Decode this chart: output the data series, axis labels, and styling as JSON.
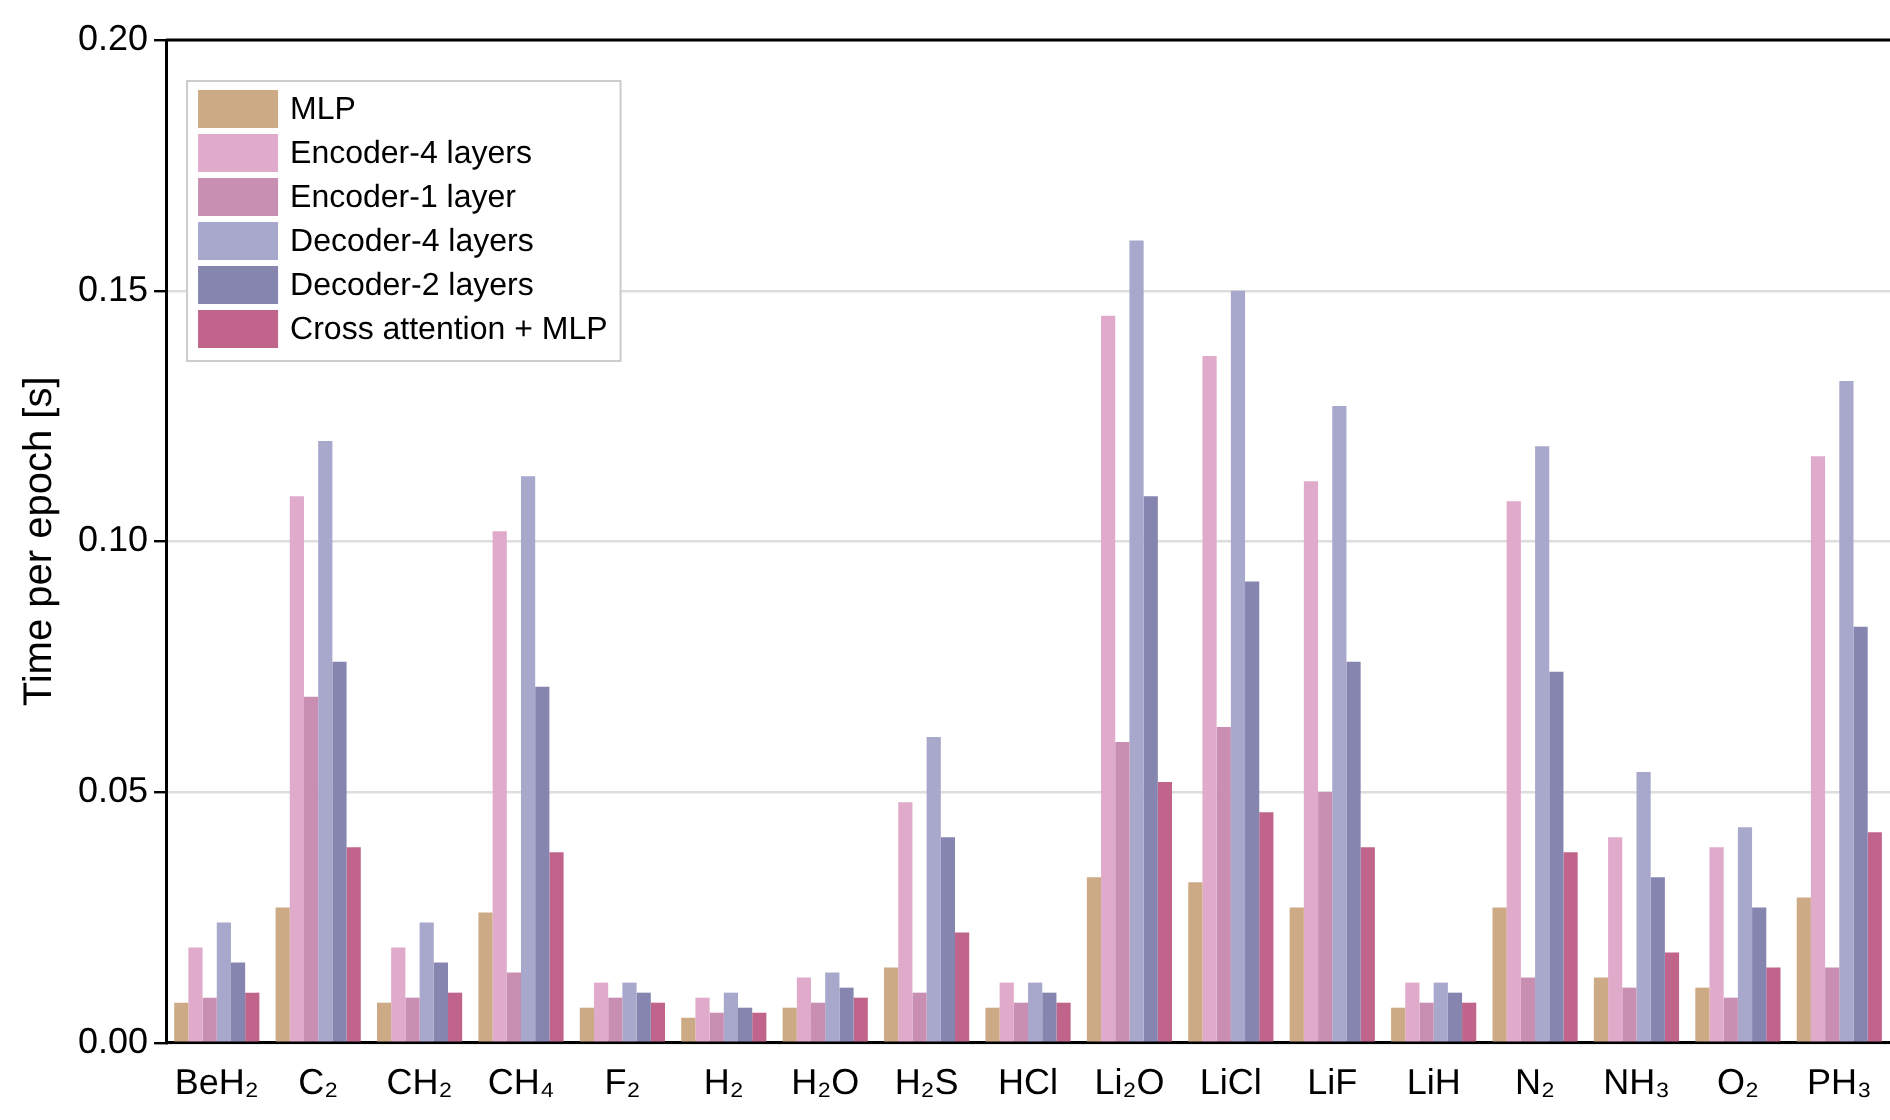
{
  "chart_data": {
    "type": "bar",
    "ylabel": "Time per epoch [s]",
    "categories": [
      "BeH₂",
      "C₂",
      "CH₂",
      "CH₄",
      "F₂",
      "H₂",
      "H₂O",
      "H₂S",
      "HCl",
      "Li₂O",
      "LiCl",
      "LiF",
      "LiH",
      "N₂",
      "NH₃",
      "O₂",
      "PH₃"
    ],
    "series": [
      {
        "name": "MLP",
        "color": "#cdaa86",
        "values": [
          0.008,
          0.027,
          0.008,
          0.026,
          0.007,
          0.005,
          0.007,
          0.015,
          0.007,
          0.033,
          0.032,
          0.027,
          0.007,
          0.027,
          0.013,
          0.011,
          0.029
        ]
      },
      {
        "name": "Encoder-4 layers",
        "color": "#e0aacb",
        "values": [
          0.019,
          0.109,
          0.019,
          0.102,
          0.012,
          0.009,
          0.013,
          0.048,
          0.012,
          0.145,
          0.137,
          0.112,
          0.012,
          0.108,
          0.041,
          0.039,
          0.117
        ]
      },
      {
        "name": "Encoder-1 layer",
        "color": "#c98fb3",
        "values": [
          0.009,
          0.069,
          0.009,
          0.014,
          0.009,
          0.006,
          0.008,
          0.01,
          0.008,
          0.06,
          0.063,
          0.05,
          0.008,
          0.013,
          0.011,
          0.009,
          0.015
        ]
      },
      {
        "name": "Decoder-4 layers",
        "color": "#a8a8cc",
        "values": [
          0.024,
          0.12,
          0.024,
          0.113,
          0.012,
          0.01,
          0.014,
          0.061,
          0.012,
          0.16,
          0.15,
          0.127,
          0.012,
          0.119,
          0.054,
          0.043,
          0.132
        ]
      },
      {
        "name": "Decoder-2 layers",
        "color": "#8585b0",
        "values": [
          0.016,
          0.076,
          0.016,
          0.071,
          0.01,
          0.007,
          0.011,
          0.041,
          0.01,
          0.109,
          0.092,
          0.076,
          0.01,
          0.074,
          0.033,
          0.027,
          0.083
        ]
      },
      {
        "name": "Cross attention + MLP",
        "color": "#c0648c",
        "values": [
          0.01,
          0.039,
          0.01,
          0.038,
          0.008,
          0.006,
          0.009,
          0.022,
          0.008,
          0.052,
          0.046,
          0.039,
          0.008,
          0.038,
          0.018,
          0.015,
          0.042
        ]
      }
    ],
    "ylim": [
      0,
      0.2
    ],
    "yticks": [
      {
        "value": 0,
        "label": "0.00"
      },
      {
        "value": 0.05,
        "label": "0.05"
      },
      {
        "value": 0.1,
        "label": "0.10"
      },
      {
        "value": 0.15,
        "label": "0.15"
      },
      {
        "value": 0.2,
        "label": "0.20"
      }
    ],
    "grid": "y",
    "legend": "top left"
  }
}
